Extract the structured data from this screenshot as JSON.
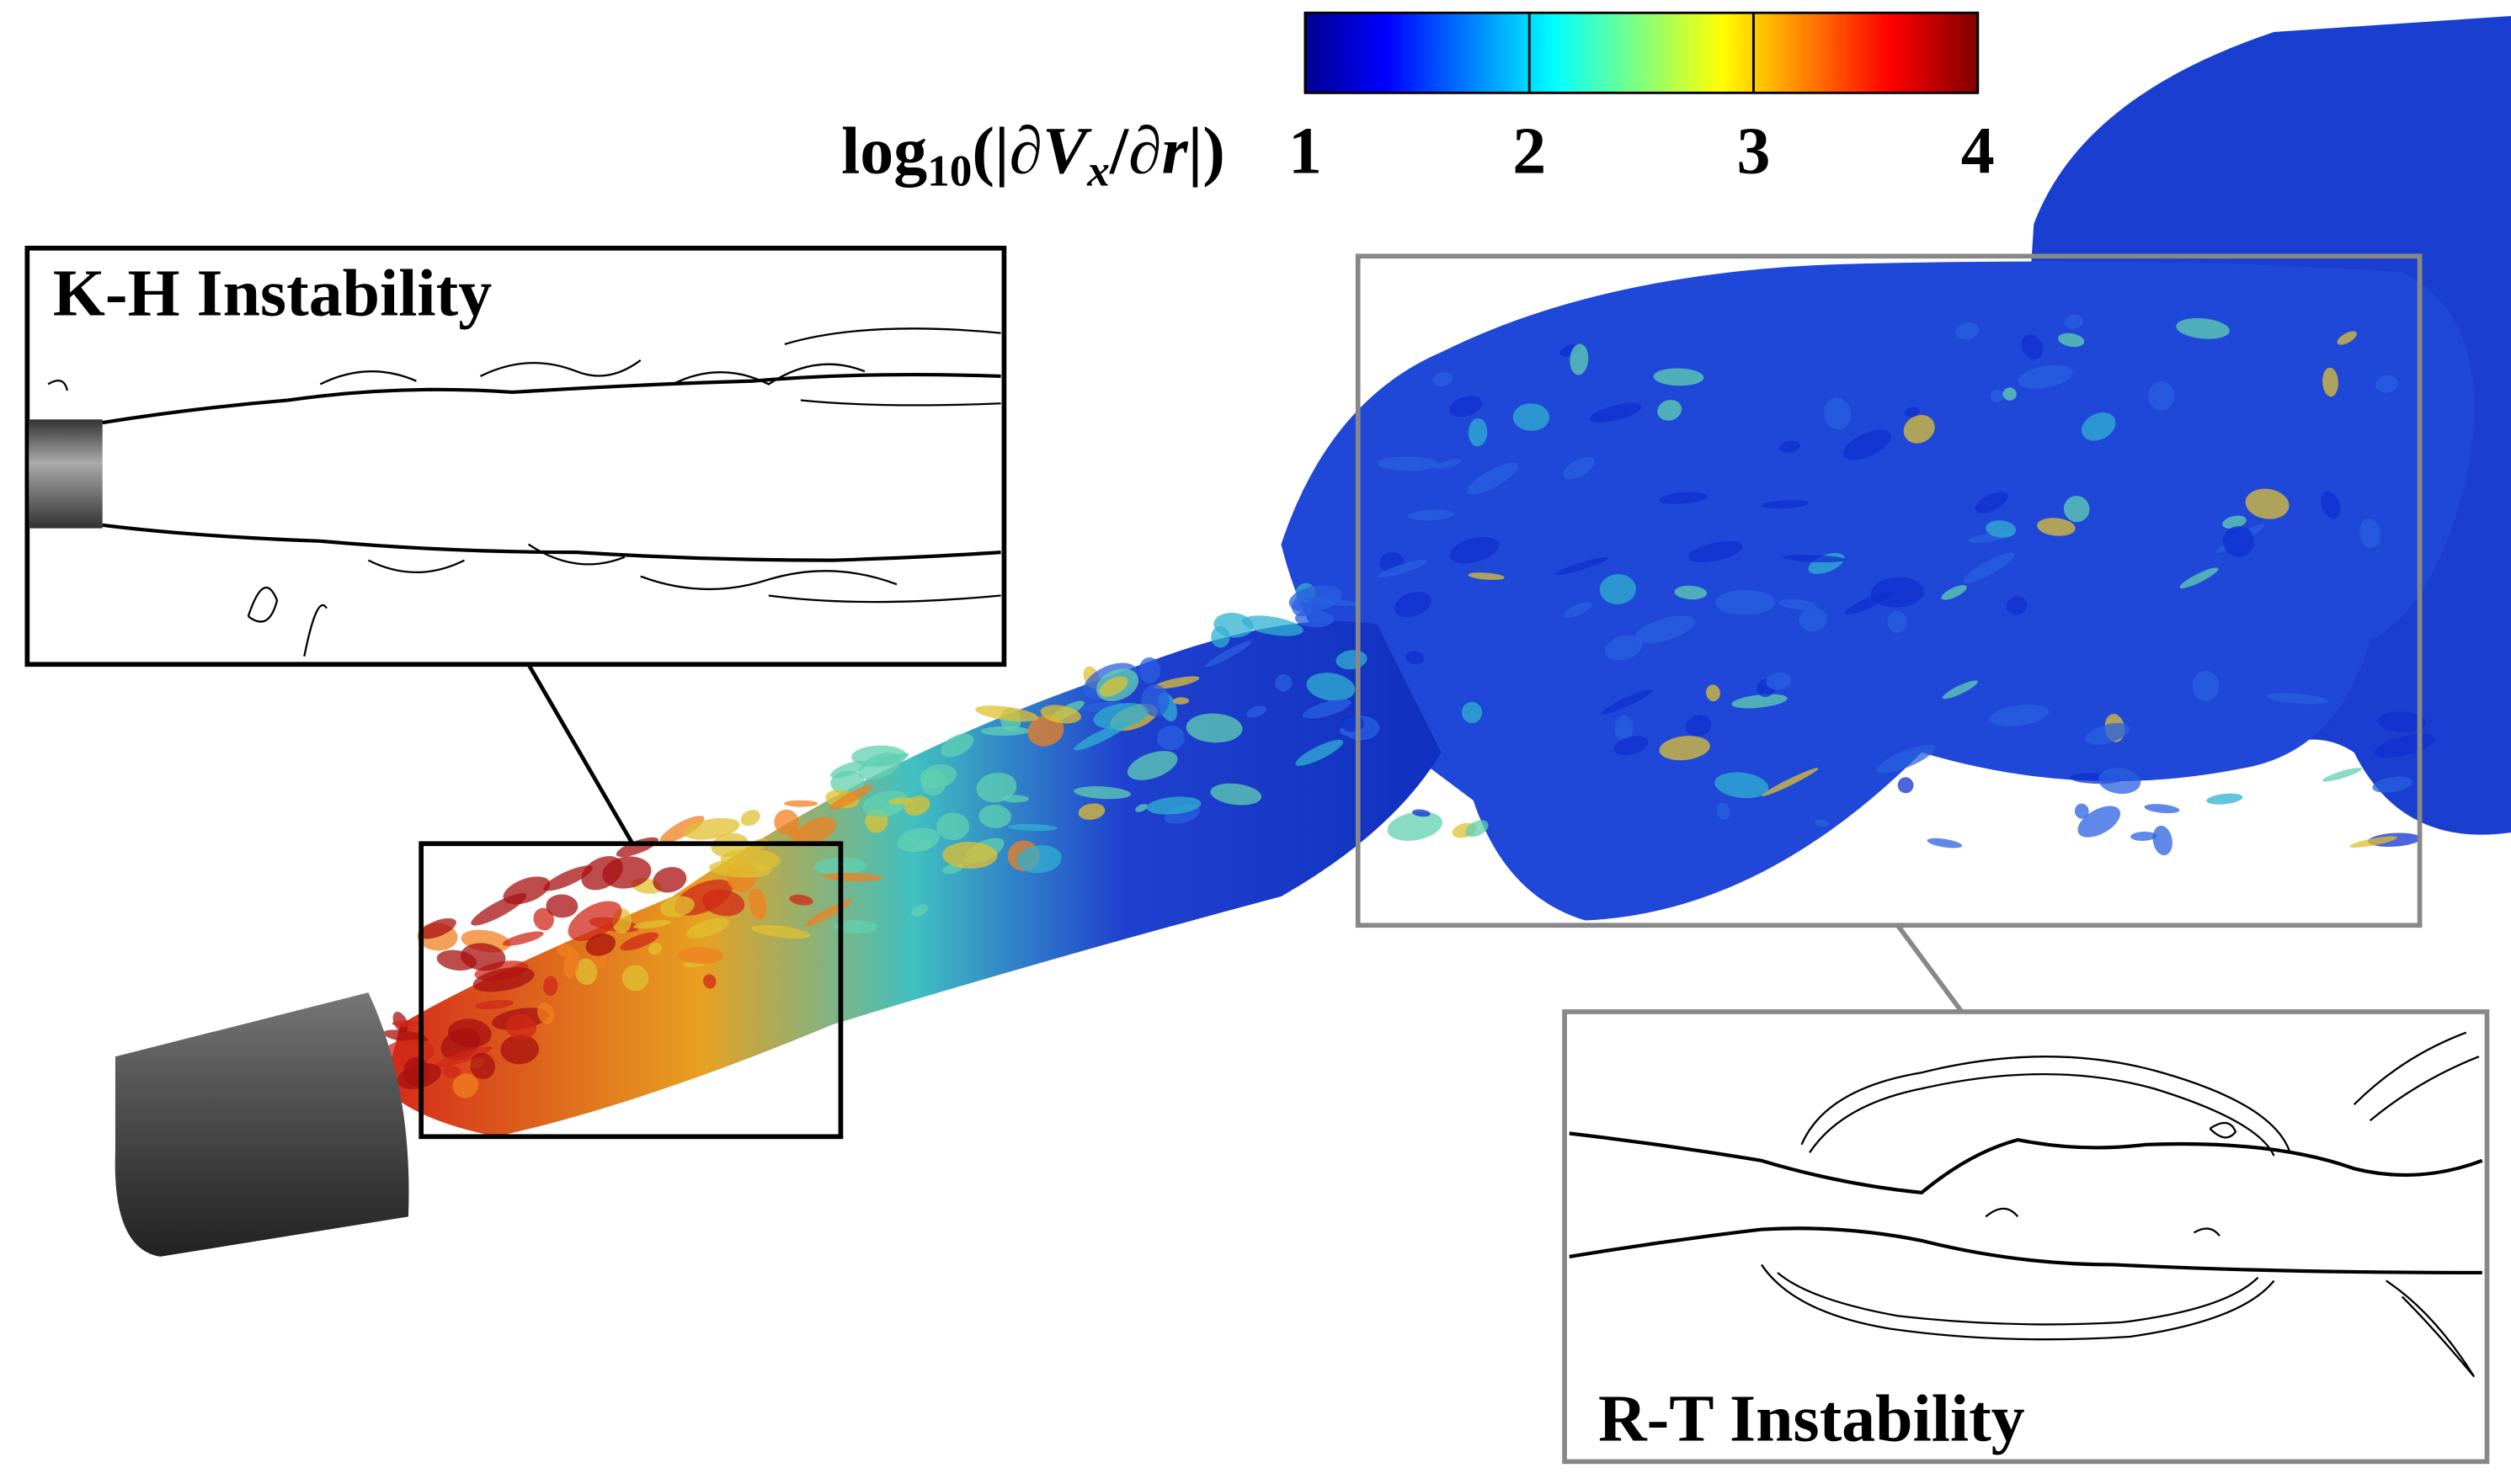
{
  "colorbar": {
    "label_parts": [
      "log",
      "10",
      "(|∂",
      "V",
      "x",
      "/∂",
      "r",
      "|)"
    ],
    "lim": [
      1,
      4
    ],
    "ticks": [
      1,
      2,
      3,
      4
    ]
  },
  "insets": {
    "kh_title": "K-H Instability",
    "rt_title": "R-T Instability"
  }
}
